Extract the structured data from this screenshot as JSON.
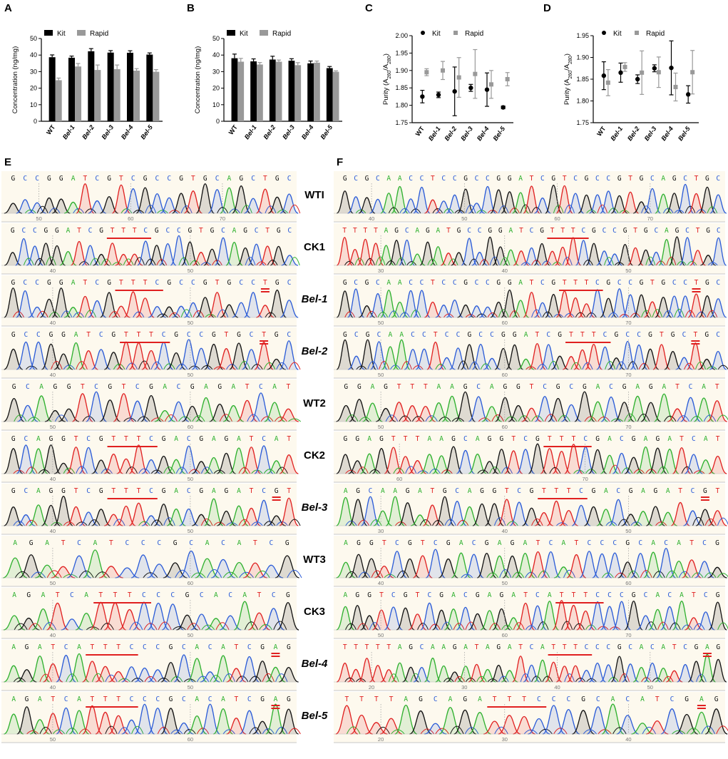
{
  "figure": {
    "panel_letters": [
      "A",
      "B",
      "C",
      "D",
      "E",
      "F"
    ]
  },
  "colors": {
    "kit": "#000000",
    "rapid": "#999999",
    "base_A": "#2db02d",
    "base_C": "#2a5bd7",
    "base_G": "#111111",
    "base_T": "#e02020",
    "mark": "#e02020",
    "trace_bg": "#fdf9ee"
  },
  "chart_data": [
    {
      "panel": "A",
      "type": "bar",
      "categories": [
        "WT",
        "Bel-1",
        "Bel-2",
        "Bel-3",
        "Bel-4",
        "Bel-5"
      ],
      "series": [
        {
          "name": "Kit",
          "values": [
            38.7,
            38.4,
            42.3,
            41.5,
            41.4,
            40.3
          ],
          "errors": [
            1.4,
            1.0,
            1.6,
            1.2,
            1.2,
            1.0
          ]
        },
        {
          "name": "Rapid",
          "values": [
            24.8,
            33.1,
            31.0,
            31.5,
            30.6,
            29.9
          ],
          "errors": [
            1.3,
            1.8,
            3.0,
            2.5,
            1.2,
            1.3
          ]
        }
      ],
      "ylabel": "Concentration (ng/mg)",
      "ylim": [
        0,
        50
      ],
      "yticks": [
        0,
        10,
        20,
        30,
        40,
        50
      ],
      "legend": "top-left"
    },
    {
      "panel": "B",
      "type": "bar",
      "categories": [
        "WT",
        "Bel-1",
        "Bel-2",
        "Bel-3",
        "Bel-4",
        "Bel-5"
      ],
      "series": [
        {
          "name": "Kit",
          "values": [
            38.1,
            36.2,
            37.3,
            36.6,
            35.0,
            32.1
          ],
          "errors": [
            2.5,
            1.5,
            2.0,
            1.2,
            1.4,
            1.0
          ]
        },
        {
          "name": "Rapid",
          "values": [
            36.0,
            34.3,
            36.0,
            33.9,
            35.4,
            29.9
          ],
          "errors": [
            2.0,
            1.2,
            1.0,
            1.5,
            1.0,
            0.6
          ]
        }
      ],
      "ylabel": "Concentration (ng/mg)",
      "ylim": [
        0,
        50
      ],
      "yticks": [
        0,
        10,
        20,
        30,
        40,
        50
      ],
      "legend": "top-left"
    },
    {
      "panel": "C",
      "type": "scatter",
      "categories": [
        "WT",
        "Bel-1",
        "Bel-2",
        "Bel-3",
        "Bel-4",
        "Bel-5"
      ],
      "series": [
        {
          "name": "Kit",
          "values": [
            1.825,
            1.83,
            1.84,
            1.85,
            1.845,
            1.794
          ],
          "errors": [
            0.018,
            0.008,
            0.07,
            0.01,
            0.048,
            0.004
          ]
        },
        {
          "name": "Rapid",
          "values": [
            1.895,
            1.9,
            1.88,
            1.89,
            1.86,
            1.875
          ],
          "errors": [
            0.01,
            0.026,
            0.057,
            0.07,
            0.04,
            0.019
          ]
        }
      ],
      "ylabel": "Purity (A260/A280)",
      "ylim": [
        1.75,
        2.0
      ],
      "yticks": [
        1.75,
        1.8,
        1.85,
        1.9,
        1.95,
        2.0
      ],
      "legend": "top"
    },
    {
      "panel": "D",
      "type": "scatter",
      "categories": [
        "WT",
        "Bel-1",
        "Bel-2",
        "Bel-3",
        "Bel-4",
        "Bel-5"
      ],
      "series": [
        {
          "name": "Kit",
          "values": [
            1.858,
            1.865,
            1.85,
            1.875,
            1.876,
            1.815
          ],
          "errors": [
            0.032,
            0.022,
            0.01,
            0.008,
            0.062,
            0.02
          ]
        },
        {
          "name": "Rapid",
          "values": [
            1.842,
            1.878,
            1.865,
            1.866,
            1.832,
            1.866
          ],
          "errors": [
            0.03,
            0.01,
            0.05,
            0.035,
            0.032,
            0.05
          ]
        }
      ],
      "ylabel": "Purity (A260/A280)",
      "ylim": [
        1.75,
        1.95
      ],
      "yticks": [
        1.75,
        1.8,
        1.85,
        1.9,
        1.95
      ],
      "legend": "top"
    }
  ],
  "chromatograms": {
    "left": [
      {
        "label": "WTI",
        "italic": false,
        "seq": "GCCGGATCGTCGCCGTGCAGCTGC",
        "positions": [
          "50",
          "60",
          "70"
        ],
        "underline": null,
        "mark": null
      },
      {
        "label": "CK1",
        "italic": false,
        "seq": "GCCGGATCGTTTCGCCGTGCAGCTGC",
        "positions": [
          "40",
          "50"
        ],
        "underline": [
          9,
          13
        ],
        "mark": null
      },
      {
        "label": "Bel-1",
        "italic": true,
        "seq": "GCCGGATCGTTTCGCCGTGCCTGC",
        "positions": [
          "40",
          "50"
        ],
        "underline": [
          9,
          13
        ],
        "mark": 21
      },
      {
        "label": "Bel-2",
        "italic": true,
        "seq": "GCCGGATCGTTTCGCCGTGCTGC",
        "positions": [
          "40",
          "50"
        ],
        "underline": [
          9,
          13
        ],
        "mark": 20
      },
      {
        "label": "WT2",
        "italic": false,
        "seq": "GCAGGTCGTCGACGAGATCAT",
        "positions": [
          "50",
          "60"
        ],
        "underline": null,
        "mark": null
      },
      {
        "label": "CK2",
        "italic": false,
        "seq": "GCAGGTCGTTTCGACGAGATCAT",
        "positions": [
          "40",
          "50"
        ],
        "underline": [
          8,
          12
        ],
        "mark": null
      },
      {
        "label": "Bel-3",
        "italic": true,
        "seq": "GCAGGTCGTTTCGACGAGATCGT",
        "positions": [
          "40",
          "50"
        ],
        "underline": [
          8,
          12
        ],
        "mark": 21
      },
      {
        "label": "WT3",
        "italic": false,
        "seq": "AGATCATCCCGCACATCG",
        "positions": [
          "50",
          "60"
        ],
        "underline": null,
        "mark": null
      },
      {
        "label": "CK3",
        "italic": false,
        "seq": "AGATCATTTCCCGCACATCG",
        "positions": [
          "40",
          "50"
        ],
        "underline": [
          6,
          10
        ],
        "mark": null
      },
      {
        "label": "Bel-4",
        "italic": true,
        "seq": "AGATCATTTCCCGCACATCGAG",
        "positions": [
          "40",
          "50"
        ],
        "underline": [
          6,
          10
        ],
        "mark": 20
      },
      {
        "label": "Bel-5",
        "italic": true,
        "seq": "AGATCATTTCCCGCACATCGAG",
        "positions": [
          "50",
          "60"
        ],
        "underline": [
          6,
          10
        ],
        "mark": 20
      }
    ],
    "right": [
      {
        "seq": "GCGCAACCTCCGCCGGATCGTCGCCGTGCAGCTGC",
        "positions": [
          "40",
          "50",
          "60",
          "70"
        ],
        "underline": null,
        "mark": null
      },
      {
        "seq": "TTTTAGCAGATGCCGGATCGTTTCGCCGTGCAGCTGC",
        "positions": [
          "30",
          "40",
          "50"
        ],
        "underline": [
          20,
          24
        ],
        "mark": null
      },
      {
        "seq": "GCGCAACCTCCGCCGGATCGTTTCGCCGTGCCTGC",
        "positions": [
          "50",
          "60",
          "70"
        ],
        "underline": [
          20,
          24
        ],
        "mark": 32
      },
      {
        "seq": "GCGCAACCTCCGCCGGATCGTTTCGCCGTGCTGC",
        "positions": [
          "50",
          "60",
          "70"
        ],
        "underline": [
          20,
          24
        ],
        "mark": 31
      },
      {
        "seq": "GGAGTTTAAGCAGGTCGCGACGAGATCAT",
        "positions": [
          "50",
          "60",
          "70"
        ],
        "underline": null,
        "mark": null
      },
      {
        "seq": "GGAGTTTAAGCAGGTCGTTTCGACGAGATCAT",
        "positions": [
          "60",
          "70"
        ],
        "underline": [
          17,
          21
        ],
        "mark": null
      },
      {
        "seq": "AGCAAGATGCAGGTCGTTTCGACGAGATCGT",
        "positions": [
          "30",
          "40",
          "50"
        ],
        "underline": [
          16,
          20
        ],
        "mark": 29
      },
      {
        "seq": "AGGTCGTCGACGAGATCATCCCGCACATCG",
        "positions": [
          "40",
          "50",
          "60"
        ],
        "underline": null,
        "mark": null
      },
      {
        "seq": "AGGTCGTCGACGAGATCATTTCCCGCACATCG",
        "positions": [
          "50",
          "60",
          "70"
        ],
        "underline": [
          18,
          22
        ],
        "mark": null
      },
      {
        "seq": "TTTTTAGCAAGATAGATCATTTCCCGCACATCGAG",
        "positions": [
          "20",
          "30",
          "40",
          "50"
        ],
        "underline": [
          19,
          23
        ],
        "mark": 33
      },
      {
        "seq": "TTTTAGCAGATTTCCCGCACATCGAG",
        "positions": [
          "20",
          "30",
          "40"
        ],
        "underline": [
          10,
          14
        ],
        "mark": 24
      }
    ]
  }
}
